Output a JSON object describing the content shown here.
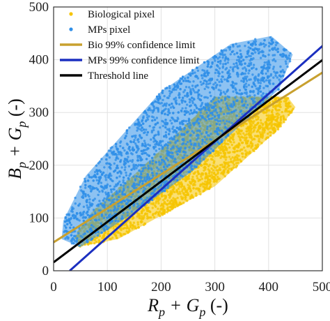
{
  "chart_data": {
    "type": "scatter",
    "xlabel": "R_p + G_p (-)",
    "ylabel": "B_p + G_p (-)",
    "xlim": [
      0,
      500
    ],
    "ylim": [
      0,
      500
    ],
    "xticks": [
      0,
      100,
      200,
      300,
      400,
      500
    ],
    "yticks": [
      0,
      100,
      200,
      300,
      400,
      500
    ],
    "grid": true,
    "legend_position": "top-left",
    "point_series": [
      {
        "name": "Biological pixel",
        "color": "#f5c400",
        "marker": "dot",
        "region": [
          [
            45,
            45
          ],
          [
            120,
            60
          ],
          [
            300,
            160
          ],
          [
            420,
            270
          ],
          [
            450,
            310
          ],
          [
            435,
            330
          ],
          [
            300,
            330
          ],
          [
            180,
            210
          ],
          [
            70,
            110
          ],
          [
            40,
            65
          ]
        ]
      },
      {
        "name": "MPs pixel",
        "color": "#2f8fe8",
        "marker": "dot",
        "region": [
          [
            15,
            60
          ],
          [
            50,
            45
          ],
          [
            150,
            110
          ],
          [
            260,
            190
          ],
          [
            300,
            230
          ],
          [
            420,
            345
          ],
          [
            445,
            410
          ],
          [
            405,
            445
          ],
          [
            330,
            430
          ],
          [
            200,
            340
          ],
          [
            60,
            180
          ],
          [
            18,
            95
          ]
        ]
      }
    ],
    "line_series": [
      {
        "name": "Bio 99% confidence limit",
        "color": "#c8a02e",
        "x": [
          0,
          510
        ],
        "y": [
          54,
          382
        ]
      },
      {
        "name": "MPs 99% confidence limit",
        "color": "#1b2fc0",
        "x": [
          30,
          510
        ],
        "y": [
          0,
          435
        ]
      },
      {
        "name": "Threshold line",
        "color": "#000000",
        "x": [
          0,
          510
        ],
        "y": [
          16,
          407
        ]
      }
    ]
  },
  "axes": {
    "x_label_main": "R",
    "x_label_sub": "p",
    "x_label_mid": " + G",
    "x_label_sub2": "p",
    "x_label_tail": " (-)",
    "y_label_main": "B",
    "y_label_sub": "p",
    "y_label_mid": " + G",
    "y_label_sub2": "p",
    "y_label_tail": " (-)"
  },
  "legend": {
    "items": [
      {
        "label": "Biological pixel",
        "kind": "dot",
        "color": "#f5c400"
      },
      {
        "label": "MPs pixel",
        "kind": "dot",
        "color": "#2f8fe8"
      },
      {
        "label": "Bio 99% confidence limit",
        "kind": "line",
        "color": "#c8a02e"
      },
      {
        "label": "MPs 99% confidence limit",
        "kind": "line",
        "color": "#1b2fc0"
      },
      {
        "label": "Threshold line",
        "kind": "line",
        "color": "#000000"
      }
    ]
  }
}
